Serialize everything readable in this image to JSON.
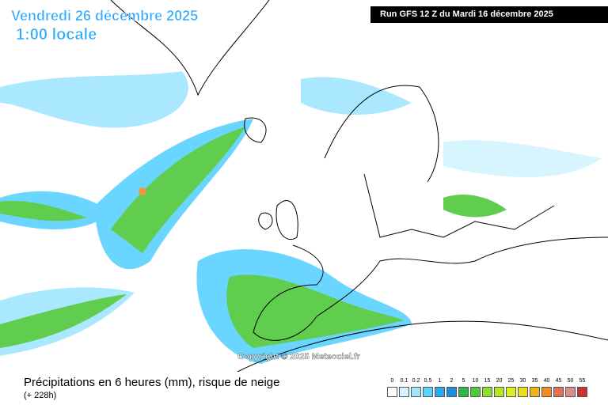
{
  "header": {
    "date": "Vendredi 26 décembre 2025",
    "time": "1:00 locale",
    "run": "Run GFS 12 Z du Mardi 16 décembre 2025"
  },
  "copyright": "Copyright © 2025 Meteociel.fr",
  "footer": {
    "title": "Précipitations en 6 heures (mm), risque de neige",
    "lead": "(+ 228h)"
  },
  "legend": {
    "items": [
      {
        "label": "0",
        "color": "#ffffff"
      },
      {
        "label": "0.1",
        "color": "#d2f5ff"
      },
      {
        "label": "0.2",
        "color": "#a0e6ff"
      },
      {
        "label": "0.5",
        "color": "#5ad2ff"
      },
      {
        "label": "1",
        "color": "#28aaf0"
      },
      {
        "label": "2",
        "color": "#1e8cdc"
      },
      {
        "label": "5",
        "color": "#32b44b"
      },
      {
        "label": "10",
        "color": "#50c83c"
      },
      {
        "label": "15",
        "color": "#8cdc32"
      },
      {
        "label": "20",
        "color": "#b4e628"
      },
      {
        "label": "25",
        "color": "#dcf01e"
      },
      {
        "label": "30",
        "color": "#f0dc1e"
      },
      {
        "label": "35",
        "color": "#f0b41e"
      },
      {
        "label": "40",
        "color": "#f08c28"
      },
      {
        "label": "45",
        "color": "#e66e50"
      },
      {
        "label": "50",
        "color": "#dc8c8c"
      },
      {
        "label": "55",
        "color": "#c83232"
      }
    ]
  }
}
